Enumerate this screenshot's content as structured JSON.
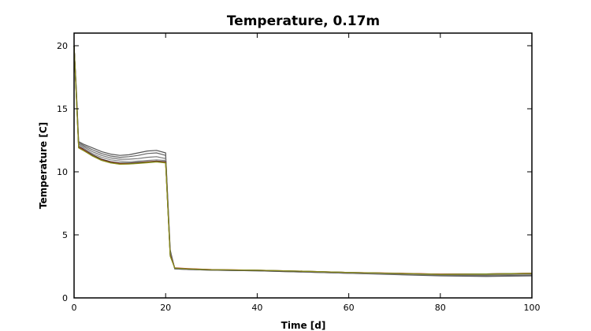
{
  "chart_data": {
    "type": "line",
    "title": "Temperature, 0.17m",
    "xlabel": "Time [d]",
    "ylabel": "Temperature [C]",
    "xlim": [
      0,
      100
    ],
    "ylim": [
      0,
      21
    ],
    "xticks": [
      0,
      20,
      40,
      60,
      80,
      100
    ],
    "yticks": [
      0,
      5,
      10,
      15,
      20
    ],
    "grid": false,
    "legend": "none",
    "x": [
      0,
      0.5,
      1,
      2,
      4,
      6,
      8,
      10,
      12,
      14,
      16,
      18,
      20,
      21,
      22,
      25,
      30,
      40,
      50,
      60,
      70,
      80,
      90,
      100
    ],
    "series": [
      {
        "color": "#555555",
        "values": [
          20,
          16.5,
          12.4,
          12.2,
          11.9,
          11.6,
          11.4,
          11.3,
          11.35,
          11.5,
          11.65,
          11.7,
          11.5,
          3.8,
          2.3,
          2.25,
          2.2,
          2.15,
          2.05,
          1.95,
          1.85,
          1.75,
          1.7,
          1.75
        ]
      },
      {
        "color": "#666666",
        "values": [
          20,
          16.4,
          12.3,
          12.1,
          11.75,
          11.45,
          11.25,
          11.15,
          11.2,
          11.3,
          11.45,
          11.5,
          11.3,
          3.7,
          2.3,
          2.25,
          2.2,
          2.15,
          2.05,
          1.95,
          1.88,
          1.8,
          1.75,
          1.8
        ]
      },
      {
        "color": "#777777",
        "values": [
          20,
          16.3,
          12.2,
          12.0,
          11.6,
          11.3,
          11.1,
          11.0,
          11.0,
          11.05,
          11.15,
          11.2,
          11.05,
          3.6,
          2.35,
          2.28,
          2.22,
          2.17,
          2.08,
          1.98,
          1.9,
          1.82,
          1.82,
          1.88
        ]
      },
      {
        "color": "#888888",
        "values": [
          20,
          16.2,
          12.1,
          11.9,
          11.45,
          11.15,
          10.95,
          10.85,
          10.8,
          10.85,
          10.9,
          10.95,
          10.9,
          3.5,
          2.35,
          2.3,
          2.22,
          2.18,
          2.1,
          2.0,
          1.92,
          1.85,
          1.85,
          1.9
        ]
      },
      {
        "color": "#2a2a2a",
        "values": [
          20,
          16.1,
          12.0,
          11.8,
          11.35,
          11.0,
          10.8,
          10.7,
          10.7,
          10.75,
          10.8,
          10.85,
          10.8,
          3.45,
          2.35,
          2.3,
          2.22,
          2.18,
          2.1,
          2.02,
          1.95,
          1.88,
          1.9,
          1.95
        ]
      },
      {
        "color": "#cc1f1f",
        "values": [
          20,
          16.0,
          11.95,
          11.75,
          11.3,
          10.95,
          10.75,
          10.65,
          10.65,
          10.7,
          10.78,
          10.82,
          10.75,
          3.4,
          2.38,
          2.32,
          2.25,
          2.2,
          2.12,
          2.02,
          1.96,
          1.88,
          1.9,
          1.96
        ]
      },
      {
        "color": "#3d8b2f",
        "values": [
          20,
          16.0,
          11.9,
          11.7,
          11.28,
          10.92,
          10.72,
          10.62,
          10.63,
          10.68,
          10.75,
          10.8,
          10.72,
          3.35,
          2.36,
          2.3,
          2.24,
          2.2,
          2.12,
          2.02,
          1.95,
          1.87,
          1.9,
          1.95
        ]
      },
      {
        "color": "#8a8a1a",
        "values": [
          20,
          15.9,
          11.9,
          11.7,
          11.25,
          10.9,
          10.7,
          10.6,
          10.62,
          10.66,
          10.72,
          10.78,
          10.7,
          3.3,
          2.36,
          2.3,
          2.24,
          2.2,
          2.12,
          2.02,
          1.95,
          1.87,
          1.88,
          1.94
        ]
      }
    ]
  }
}
